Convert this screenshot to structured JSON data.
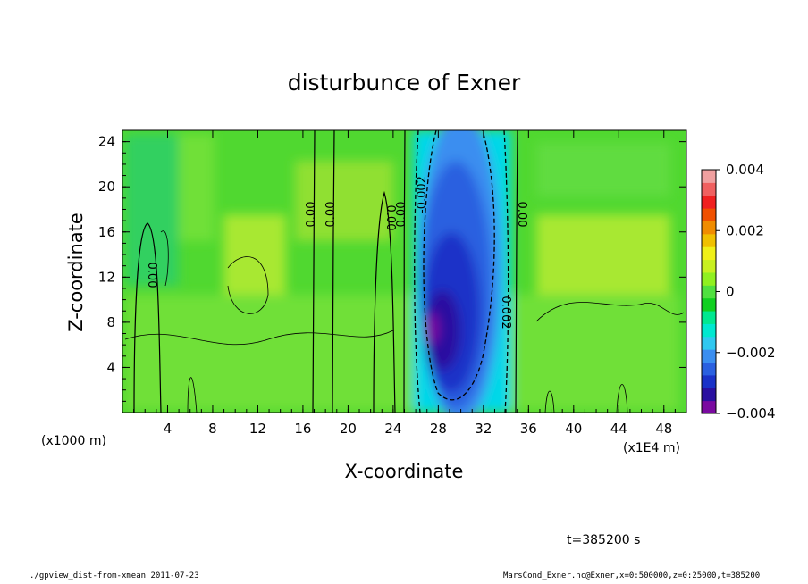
{
  "chart_data": {
    "type": "heatmap",
    "title": "disturbunce of Exner",
    "xlabel": "X-coordinate",
    "ylabel": "Z-coordinate",
    "x_unit_note": "(x1E4 m)",
    "y_unit_note": "(x1000 m)",
    "xlim": [
      0,
      50
    ],
    "ylim": [
      0,
      25
    ],
    "x_ticks": [
      "4",
      "8",
      "12",
      "16",
      "20",
      "24",
      "28",
      "32",
      "36",
      "40",
      "44",
      "48"
    ],
    "y_ticks": [
      "4",
      "8",
      "12",
      "16",
      "20",
      "24"
    ],
    "colorbar": {
      "min": -0.004,
      "max": 0.004,
      "tick_labels": [
        "0.004",
        "0.002",
        "0",
        "−0.002",
        "−0.004"
      ],
      "colors": [
        "#7a0aa0",
        "#2a10a0",
        "#1a32c8",
        "#2a60e0",
        "#3a8ef0",
        "#30c8f0",
        "#00e8d0",
        "#00e890",
        "#10d020",
        "#50e040",
        "#90f020",
        "#c8f020",
        "#f0f018",
        "#f0c000",
        "#f08c00",
        "#f05000",
        "#f02020",
        "#f06060",
        "#f0a0a0"
      ]
    },
    "zero_contour_labels": [
      "0.00",
      "0.00",
      "0.00",
      "0.00",
      "0.00",
      "0.00"
    ],
    "negative_contour_labels": [
      "-0.002",
      "0.002"
    ],
    "field_description_values": {
      "background_level": 0,
      "min_value": -0.004,
      "min_location": {
        "x": 27.5,
        "z": 7.5
      },
      "negative_band_x_range": [
        26,
        35
      ]
    }
  },
  "footer": {
    "time_label": "t=385200 s",
    "left_note": "./gpview_dist-from-xmean   2011-07-23",
    "right_note": "MarsCond_Exner.nc@Exner,x=0:500000,z=0:25000,t=385200"
  }
}
